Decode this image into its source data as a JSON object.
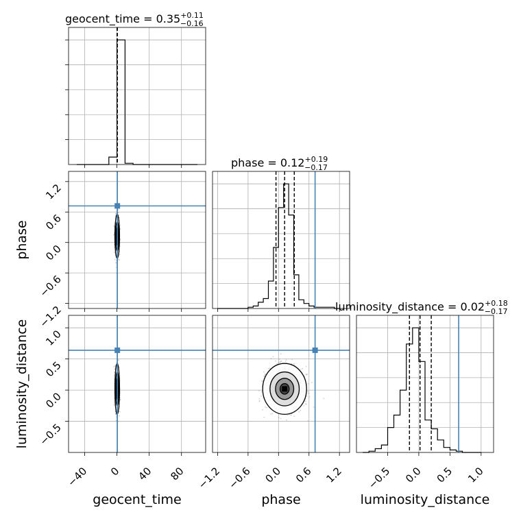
{
  "chart_data": [
    {
      "type": "histogram",
      "panel": "geocent_time-marginal",
      "title": {
        "prefix": "geocent_time = ",
        "median": "0.35",
        "plus": "+0.11",
        "minus": "−0.16"
      },
      "xlim": [
        -60,
        110
      ],
      "bins": [
        -50,
        -40,
        -30,
        -20,
        -10,
        0,
        10,
        20,
        30,
        40,
        50,
        60,
        70,
        80,
        90,
        100
      ],
      "counts": [
        0,
        0,
        0,
        0,
        0.06,
        1.0,
        0.01,
        0,
        0,
        0,
        0,
        0,
        0,
        0,
        0
      ],
      "quantiles": [
        0.19,
        0.35,
        0.46
      ],
      "grid": true
    },
    {
      "type": "scatter",
      "panel": "phase-vs-geocent_time",
      "xlim": [
        -60,
        110
      ],
      "ylim": [
        -1.3,
        1.4
      ],
      "center": [
        0.35,
        0.12
      ],
      "spread": [
        1.2,
        0.18
      ],
      "truth": [
        0.5,
        0.72
      ],
      "yticks": [
        {
          "v": -1.2,
          "label": "−1.2"
        },
        {
          "v": -0.6,
          "label": "−0.6"
        },
        {
          "v": 0.0,
          "label": "0.0"
        },
        {
          "v": 0.6,
          "label": "0.6"
        },
        {
          "v": 1.2,
          "label": "1.2"
        }
      ],
      "ylabel": "phase",
      "grid": true
    },
    {
      "type": "histogram",
      "panel": "phase-marginal",
      "title": {
        "prefix": "phase = ",
        "median": "0.12",
        "plus": "+0.19",
        "minus": "−0.17"
      },
      "xlim": [
        -1.3,
        1.4
      ],
      "bins": [
        -1.2,
        -1.1,
        -1.0,
        -0.9,
        -0.8,
        -0.7,
        -0.6,
        -0.5,
        -0.4,
        -0.3,
        -0.2,
        -0.1,
        0.0,
        0.1,
        0.2,
        0.3,
        0.4,
        0.5,
        0.6,
        0.7,
        0.8,
        0.9,
        1.0,
        1.1,
        1.2
      ],
      "counts": [
        0,
        0,
        0,
        0,
        0,
        0,
        0.01,
        0.02,
        0.05,
        0.08,
        0.22,
        0.49,
        0.81,
        1.0,
        0.75,
        0.27,
        0.07,
        0.04,
        0.02,
        0.01,
        0.01,
        0.01,
        0.01,
        0
      ],
      "quantiles": [
        -0.05,
        0.12,
        0.31
      ],
      "truth": 0.72,
      "grid": true
    },
    {
      "type": "scatter",
      "panel": "luminosity_distance-vs-geocent_time",
      "xlim": [
        -60,
        110
      ],
      "ylim": [
        -1.0,
        1.2
      ],
      "center": [
        0.35,
        0.02
      ],
      "spread": [
        1.2,
        0.17
      ],
      "truth": [
        0.5,
        0.64
      ],
      "xticks": [
        {
          "v": -40,
          "label": "−40"
        },
        {
          "v": 0,
          "label": "0"
        },
        {
          "v": 40,
          "label": "40"
        },
        {
          "v": 80,
          "label": "80"
        }
      ],
      "yticks": [
        {
          "v": -0.5,
          "label": "−0.5"
        },
        {
          "v": 0.0,
          "label": "0.0"
        },
        {
          "v": 0.5,
          "label": "0.5"
        },
        {
          "v": 1.0,
          "label": "1.0"
        }
      ],
      "xlabel": "geocent_time",
      "ylabel": "luminosity_distance",
      "grid": true
    },
    {
      "type": "scatter",
      "panel": "luminosity_distance-vs-phase",
      "xlim": [
        -1.3,
        1.4
      ],
      "ylim": [
        -1.0,
        1.2
      ],
      "center": [
        0.12,
        0.02
      ],
      "spread": [
        0.18,
        0.17
      ],
      "truth": [
        0.72,
        0.64
      ],
      "xticks": [
        {
          "v": -1.2,
          "label": "−1.2"
        },
        {
          "v": -0.6,
          "label": "−0.6"
        },
        {
          "v": 0.0,
          "label": "0.0"
        },
        {
          "v": 0.6,
          "label": "0.6"
        },
        {
          "v": 1.2,
          "label": "1.2"
        }
      ],
      "xlabel": "phase",
      "grid": true
    },
    {
      "type": "histogram",
      "panel": "luminosity_distance-marginal",
      "title": {
        "prefix": "luminosity_distance = ",
        "median": "0.02",
        "plus": "+0.18",
        "minus": "−0.17"
      },
      "xlim": [
        -1.0,
        1.2
      ],
      "bins": [
        -0.9,
        -0.8,
        -0.7,
        -0.6,
        -0.5,
        -0.4,
        -0.3,
        -0.2,
        -0.1,
        0.0,
        0.1,
        0.2,
        0.3,
        0.4,
        0.5,
        0.6,
        0.7,
        0.8,
        0.9,
        1.0
      ],
      "counts": [
        0,
        0.01,
        0.03,
        0.06,
        0.2,
        0.3,
        0.5,
        0.87,
        1.0,
        0.73,
        0.26,
        0.19,
        0.1,
        0.04,
        0.02,
        0.01,
        0,
        0,
        0
      ],
      "quantiles": [
        -0.15,
        0.02,
        0.2
      ],
      "truth": 0.64,
      "xticks": [
        {
          "v": -0.5,
          "label": "−0.5"
        },
        {
          "v": 0.0,
          "label": "0.0"
        },
        {
          "v": 0.5,
          "label": "0.5"
        },
        {
          "v": 1.0,
          "label": "1.0"
        }
      ],
      "xlabel": "luminosity_distance",
      "grid": true
    }
  ],
  "colors": {
    "truth": "#4682b4",
    "hist": "#000000",
    "grid": "#b0b0b0",
    "points": "#7f7f7f"
  }
}
